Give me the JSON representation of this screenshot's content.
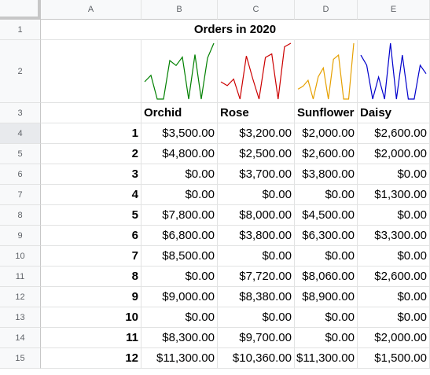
{
  "columns": [
    "A",
    "B",
    "C",
    "D",
    "E"
  ],
  "rows": [
    "1",
    "2",
    "3",
    "4",
    "5",
    "6",
    "7",
    "8",
    "9",
    "10",
    "11",
    "12",
    "13",
    "14",
    "15"
  ],
  "title": "Orders in 2020",
  "headers": [
    "Orchid",
    "Rose",
    "Sunflower",
    "Daisy"
  ],
  "sparkline_colors": [
    "#008000",
    "#cc0000",
    "#e6a000",
    "#0000cc"
  ],
  "months": [
    "1",
    "2",
    "3",
    "4",
    "5",
    "6",
    "7",
    "8",
    "9",
    "10",
    "11",
    "12"
  ],
  "values": [
    [
      "$3,500.00",
      "$3,200.00",
      "$2,000.00",
      "$2,600.00"
    ],
    [
      "$4,800.00",
      "$2,500.00",
      "$2,600.00",
      "$2,000.00"
    ],
    [
      "$0.00",
      "$3,700.00",
      "$3,800.00",
      "$0.00"
    ],
    [
      "$0.00",
      "$0.00",
      "$0.00",
      "$1,300.00"
    ],
    [
      "$7,800.00",
      "$8,000.00",
      "$4,500.00",
      "$0.00"
    ],
    [
      "$6,800.00",
      "$3,800.00",
      "$6,300.00",
      "$3,300.00"
    ],
    [
      "$8,500.00",
      "$0.00",
      "$0.00",
      "$0.00"
    ],
    [
      "$0.00",
      "$7,720.00",
      "$8,060.00",
      "$2,600.00"
    ],
    [
      "$9,000.00",
      "$8,380.00",
      "$8,900.00",
      "$0.00"
    ],
    [
      "$0.00",
      "$0.00",
      "$0.00",
      "$0.00"
    ],
    [
      "$8,300.00",
      "$9,700.00",
      "$0.00",
      "$2,000.00"
    ],
    [
      "$11,300.00",
      "$10,360.00",
      "$11,300.00",
      "$1,500.00"
    ]
  ],
  "selected_row": "4"
}
